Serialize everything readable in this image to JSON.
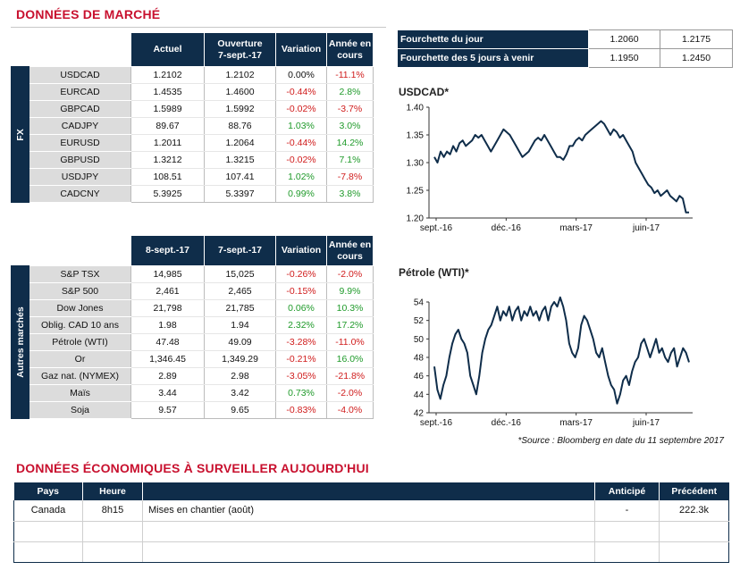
{
  "market_title": "DONNÉES DE MARCHÉ",
  "fx": {
    "side_label": "FX",
    "headers": [
      "Actuel",
      "Ouverture 7-sept.-17",
      "Variation",
      "Année en cours"
    ],
    "header_lines": [
      [
        "Actuel"
      ],
      [
        "Ouverture",
        "7-sept.-17"
      ],
      [
        "Variation"
      ],
      [
        "Année en",
        "cours"
      ]
    ],
    "rows": [
      {
        "label": "USDCAD",
        "cur": "1.2102",
        "open": "1.2102",
        "var": "0.00%",
        "var_sign": "zero",
        "ytd": "-11.1%",
        "ytd_sign": "neg"
      },
      {
        "label": "EURCAD",
        "cur": "1.4535",
        "open": "1.4600",
        "var": "-0.44%",
        "var_sign": "neg",
        "ytd": "2.8%",
        "ytd_sign": "pos"
      },
      {
        "label": "GBPCAD",
        "cur": "1.5989",
        "open": "1.5992",
        "var": "-0.02%",
        "var_sign": "neg",
        "ytd": "-3.7%",
        "ytd_sign": "neg"
      },
      {
        "label": "CADJPY",
        "cur": "89.67",
        "open": "88.76",
        "var": "1.03%",
        "var_sign": "pos",
        "ytd": "3.0%",
        "ytd_sign": "pos"
      },
      {
        "label": "EURUSD",
        "cur": "1.2011",
        "open": "1.2064",
        "var": "-0.44%",
        "var_sign": "neg",
        "ytd": "14.2%",
        "ytd_sign": "pos"
      },
      {
        "label": "GBPUSD",
        "cur": "1.3212",
        "open": "1.3215",
        "var": "-0.02%",
        "var_sign": "neg",
        "ytd": "7.1%",
        "ytd_sign": "pos"
      },
      {
        "label": "USDJPY",
        "cur": "108.51",
        "open": "107.41",
        "var": "1.02%",
        "var_sign": "pos",
        "ytd": "-7.8%",
        "ytd_sign": "neg"
      },
      {
        "label": "CADCNY",
        "cur": "5.3925",
        "open": "5.3397",
        "var": "0.99%",
        "var_sign": "pos",
        "ytd": "3.8%",
        "ytd_sign": "pos"
      }
    ]
  },
  "other": {
    "side_label": "Autres marchés",
    "header_lines": [
      [
        "8-sept.-17"
      ],
      [
        "7-sept.-17"
      ],
      [
        "Variation"
      ],
      [
        "Année en",
        "cours"
      ]
    ],
    "rows": [
      {
        "label": "S&P TSX",
        "cur": "14,985",
        "open": "15,025",
        "var": "-0.26%",
        "var_sign": "neg",
        "ytd": "-2.0%",
        "ytd_sign": "neg"
      },
      {
        "label": "S&P 500",
        "cur": "2,461",
        "open": "2,465",
        "var": "-0.15%",
        "var_sign": "neg",
        "ytd": "9.9%",
        "ytd_sign": "pos"
      },
      {
        "label": "Dow Jones",
        "cur": "21,798",
        "open": "21,785",
        "var": "0.06%",
        "var_sign": "pos",
        "ytd": "10.3%",
        "ytd_sign": "pos"
      },
      {
        "label": "Oblig. CAD 10 ans",
        "cur": "1.98",
        "open": "1.94",
        "var": "2.32%",
        "var_sign": "pos",
        "ytd": "17.2%",
        "ytd_sign": "pos"
      },
      {
        "label": "Pétrole (WTI)",
        "cur": "47.48",
        "open": "49.09",
        "var": "-3.28%",
        "var_sign": "neg",
        "ytd": "-11.0%",
        "ytd_sign": "neg"
      },
      {
        "label": "Or",
        "cur": "1,346.45",
        "open": "1,349.29",
        "var": "-0.21%",
        "var_sign": "neg",
        "ytd": "16.0%",
        "ytd_sign": "pos"
      },
      {
        "label": "Gaz nat. (NYMEX)",
        "cur": "2.89",
        "open": "2.98",
        "var": "-3.05%",
        "var_sign": "neg",
        "ytd": "-21.8%",
        "ytd_sign": "neg"
      },
      {
        "label": "Maïs",
        "cur": "3.44",
        "open": "3.42",
        "var": "0.73%",
        "var_sign": "pos",
        "ytd": "-2.0%",
        "ytd_sign": "neg"
      },
      {
        "label": "Soja",
        "cur": "9.57",
        "open": "9.65",
        "var": "-0.83%",
        "var_sign": "neg",
        "ytd": "-4.0%",
        "ytd_sign": "neg"
      }
    ]
  },
  "ranges": [
    {
      "label": "Fourchette du jour",
      "low": "1.2060",
      "high": "1.2175"
    },
    {
      "label": "Fourchette des 5 jours à venir",
      "low": "1.1950",
      "high": "1.2450"
    }
  ],
  "colors": {
    "navy": "#0f2d4a",
    "red": "#c8102e",
    "pos": "#1f9a2a",
    "neg": "#d01c1c"
  },
  "chart_data": [
    {
      "type": "line",
      "title": "USDCAD*",
      "xlabel": "",
      "ylabel": "",
      "x_ticks": [
        "sept.-16",
        "déc.-16",
        "mars-17",
        "juin-17"
      ],
      "y_ticks": [
        "1.40",
        "1.35",
        "1.30",
        "1.25",
        "1.20"
      ],
      "ylim": [
        1.2,
        1.4
      ],
      "grid": false,
      "series": [
        {
          "values": [
            1.31,
            1.3,
            1.32,
            1.31,
            1.32,
            1.315,
            1.33,
            1.32,
            1.335,
            1.34,
            1.33,
            1.335,
            1.34,
            1.35,
            1.345,
            1.35,
            1.34,
            1.33,
            1.32,
            1.33,
            1.34,
            1.35,
            1.36,
            1.355,
            1.35,
            1.34,
            1.33,
            1.32,
            1.31,
            1.315,
            1.32,
            1.33,
            1.34,
            1.345,
            1.34,
            1.35,
            1.34,
            1.33,
            1.32,
            1.31,
            1.31,
            1.305,
            1.315,
            1.33,
            1.33,
            1.34,
            1.345,
            1.34,
            1.35,
            1.355,
            1.36,
            1.365,
            1.37,
            1.375,
            1.37,
            1.36,
            1.35,
            1.36,
            1.355,
            1.345,
            1.35,
            1.34,
            1.33,
            1.32,
            1.3,
            1.29,
            1.28,
            1.27,
            1.26,
            1.255,
            1.245,
            1.25,
            1.24,
            1.245,
            1.25,
            1.24,
            1.235,
            1.23,
            1.24,
            1.235,
            1.21,
            1.21
          ]
        }
      ]
    },
    {
      "type": "line",
      "title": "Pétrole (WTI)*",
      "xlabel": "",
      "ylabel": "",
      "x_ticks": [
        "sept.-16",
        "déc.-16",
        "mars-17",
        "juin-17"
      ],
      "y_ticks": [
        "54",
        "52",
        "50",
        "48",
        "46",
        "44",
        "42"
      ],
      "ylim": [
        42,
        54
      ],
      "grid": false,
      "series": [
        {
          "values": [
            47,
            44.5,
            43.5,
            45,
            46,
            48,
            49.5,
            50.5,
            51,
            50,
            49.5,
            48.5,
            46,
            45,
            44,
            46,
            48.5,
            50,
            51,
            51.5,
            52.5,
            53.5,
            52,
            53,
            52.5,
            53.5,
            52,
            53,
            53.5,
            52,
            53,
            52.5,
            53.5,
            52.5,
            53,
            52,
            53,
            53.5,
            52,
            53.5,
            54,
            53.5,
            54.5,
            53.5,
            52,
            49.5,
            48.5,
            48,
            49,
            51.5,
            52.5,
            52,
            51,
            50,
            48.5,
            48,
            49,
            47.5,
            46,
            45,
            44.5,
            43,
            44,
            45.5,
            46,
            45,
            46.5,
            47.5,
            48,
            49.5,
            50,
            49,
            48,
            49,
            50,
            48.5,
            49,
            48,
            47.5,
            48.5,
            49,
            47,
            48,
            49,
            48.5,
            47.48
          ]
        }
      ]
    }
  ],
  "source_note": "*Source : Bloomberg en date du  11 septembre 2017",
  "eco_title": "DONNÉES ÉCONOMIQUES À SURVEILLER AUJOURD'HUI",
  "eco": {
    "headers": [
      "Pays",
      "Heure",
      "",
      "Anticipé",
      "Précédent"
    ],
    "rows": [
      [
        "Canada",
        "8h15",
        "Mises en chantier (août)",
        "-",
        "222.3k"
      ],
      [
        "",
        "",
        "",
        "",
        ""
      ],
      [
        "",
        "",
        "",
        "",
        ""
      ]
    ]
  }
}
